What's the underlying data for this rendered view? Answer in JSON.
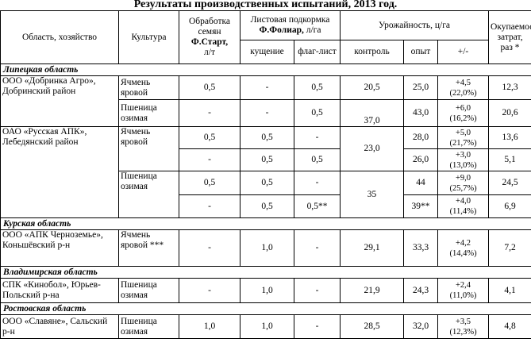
{
  "title": "Результаты производственных испытаний, 2013 год.",
  "headers": {
    "region": "Область, хозяйство",
    "crop": "Культура",
    "seed_line1": "Обработка семян",
    "seed_product": "Ф.Старт,",
    "seed_unit": "л/т",
    "foliar_line1": "Листовая подкормка",
    "foliar_product": "Ф.Фолиар,",
    "foliar_unit": "л/га",
    "tillering": "кущение",
    "flag_leaf": "флаг-лист",
    "yield": "Урожайность, ц/га",
    "control": "контроль",
    "trial": "опыт",
    "diff": "+/-",
    "payback": "Окупаемость затрат, раз *"
  },
  "regions": {
    "lipetsk": "Липецкая область",
    "kursk": "Курская область",
    "vladimir": "Владимирская область",
    "rostov": "Ростовская область"
  },
  "farms": {
    "dobrinka": "ООО «Добринка Агро», Добринский район",
    "russkaya": "ОАО «Русская АПК», Лебедянский район",
    "chernozemye": "ООО «АПК Черноземье», Коньшёвский р-н",
    "kinobol": "СПК «Кинобол», Юрьев-Польский р-на",
    "slavyanie": "ООО «Славяне», Сальский р-н"
  },
  "crops": {
    "barley": "Ячмень яровой",
    "wheat": "Пшеница озимая",
    "barley_star": "Ячмень яровой ***"
  },
  "rows": {
    "r1": {
      "seed": "0,5",
      "till": "-",
      "flag": "0,5",
      "control": "20,5",
      "trial": "25,0",
      "diff_a": "+4,5",
      "diff_b": "(22,0%)",
      "pay": "12,3"
    },
    "r2": {
      "seed": "-",
      "till": "-",
      "flag": "0,5",
      "control": "37,0",
      "trial": "43,0",
      "diff_a": "+6,0",
      "diff_b": "(16,2%)",
      "pay": "20,6"
    },
    "r3": {
      "seed": "0,5",
      "till": "0,5",
      "flag": "-",
      "trial": "28,0",
      "diff_a": "+5,0",
      "diff_b": "(21,7%)",
      "pay": "13,6"
    },
    "r34_control": "23,0",
    "r4": {
      "seed": "-",
      "till": "0,5",
      "flag": "0,5",
      "trial": "26,0",
      "diff_a": "+3,0",
      "diff_b": "(13,0%)",
      "pay": "5,1"
    },
    "r5": {
      "seed": "0,5",
      "till": "0,5",
      "flag": "-",
      "trial": "44",
      "diff_a": "+9,0",
      "diff_b": "(25,7%)",
      "pay": "24,5"
    },
    "r56_control": "35",
    "r6": {
      "seed": "-",
      "till": "0,5",
      "flag": "0,5**",
      "trial": "39**",
      "diff_a": "+4,0",
      "diff_b": "(11,4%)",
      "pay": "6,9"
    },
    "r7": {
      "seed": "-",
      "till": "1,0",
      "flag": "-",
      "control": "29,1",
      "trial": "33,3",
      "diff_a": "+4,2",
      "diff_b": "(14,4%)",
      "pay": "7,2"
    },
    "r8": {
      "seed": "-",
      "till": "1,0",
      "flag": "-",
      "control": "21,9",
      "trial": "24,3",
      "diff_a": "+2,4",
      "diff_b": "(11,0%)",
      "pay": "4,1"
    },
    "r9": {
      "seed": "1,0",
      "till": "1,0",
      "flag": "-",
      "control": "28,5",
      "trial": "32,0",
      "diff_a": "+3,5",
      "diff_b": "(12,3%)",
      "pay": "4,8"
    }
  }
}
